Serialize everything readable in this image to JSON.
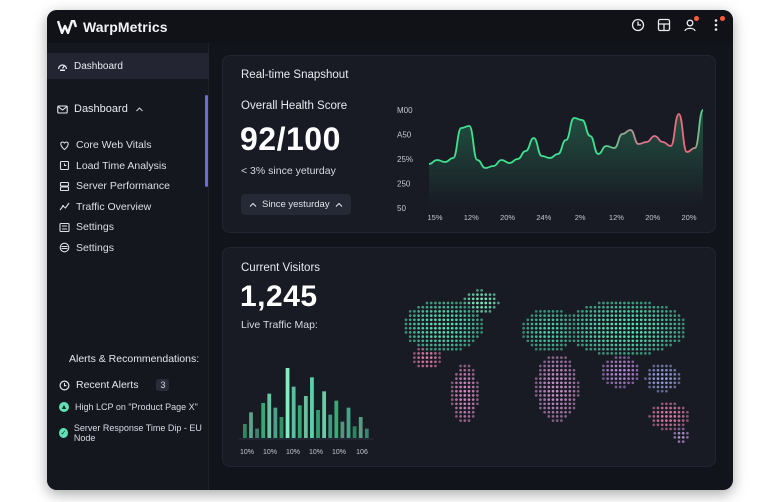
{
  "app": {
    "title": "WarpMetrics"
  },
  "header": {
    "icons": [
      "clock-chart-icon",
      "layout-icon",
      "user-alert-icon",
      "more-vertical-icon"
    ],
    "notification_color": "#ff5a3c"
  },
  "sidebar": {
    "active_item": "Dashboard",
    "group_label": "Dashboard",
    "items": [
      {
        "label": "Core Web Vitals",
        "icon": "vitals-icon"
      },
      {
        "label": "Load Time Analysis",
        "icon": "stopwatch-icon"
      },
      {
        "label": "Server Performance",
        "icon": "server-icon"
      },
      {
        "label": "Traffic Overview",
        "icon": "traffic-icon"
      },
      {
        "label": "Settings",
        "icon": "sliders-icon"
      },
      {
        "label": "Settings",
        "icon": "layers-icon"
      }
    ],
    "alerts_title": "Alerts & Recommendations:",
    "recent_alerts_label": "Recent Alerts",
    "recent_alerts_count": "3",
    "alerts": [
      {
        "text": "High LCP on \"Product Page X\""
      },
      {
        "text": "Server Response Time Dip - EU Node"
      }
    ]
  },
  "snapshot": {
    "title": "Real-time Snapshout",
    "health_label": "Overall Health Score",
    "health_value": "92/100",
    "change_text": "< 3% since yeturday",
    "pill_label": "Since yesturday",
    "chart_data": {
      "type": "line",
      "y_tick_labels": [
        "M00",
        "A50",
        "25%",
        "250",
        "50"
      ],
      "x_tick_labels": [
        "15%",
        "12%",
        "20%",
        "24%",
        "2%",
        "12%",
        "20%",
        "20%"
      ],
      "series": [
        {
          "color": "#3fe08f",
          "values": [
            42,
            46,
            44,
            48,
            78,
            80,
            46,
            38,
            40,
            46,
            43,
            47,
            55,
            68,
            50,
            48,
            52,
            66,
            88,
            86,
            70,
            52,
            60,
            58,
            72,
            76,
            62,
            64,
            70,
            64,
            60,
            92,
            54,
            58,
            96
          ]
        }
      ]
    }
  },
  "visitors": {
    "title": "Current Visitors",
    "value": "1,245",
    "map_label": "Live Traffic Map:",
    "chart_data": {
      "type": "bar",
      "x_tick_labels": [
        "10%",
        "10%",
        "10%",
        "10%",
        "10%",
        "106"
      ],
      "values": [
        12,
        22,
        8,
        30,
        38,
        26,
        18,
        60,
        44,
        28,
        36,
        52,
        24,
        40,
        20,
        32,
        14,
        26,
        10,
        18,
        8
      ],
      "colors": [
        "#3fe08f",
        "#7ef0c0",
        "#5fe0b5"
      ]
    }
  }
}
